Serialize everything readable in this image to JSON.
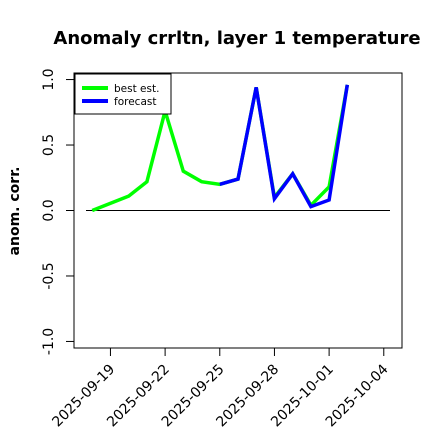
{
  "chart_data": {
    "type": "line",
    "title": "Anomaly crrltn, layer 1 temperature",
    "xlabel": "",
    "ylabel": "anom. corr.",
    "ylim": [
      -1.05,
      1.05
    ],
    "yticks": [
      -1.0,
      -0.5,
      0.0,
      0.5,
      1.0
    ],
    "ytick_labels": [
      "-1.0",
      "-0.5",
      "0.0",
      "0.5",
      "1.0"
    ],
    "xlim": [
      "2025-09-17",
      "2025-10-05"
    ],
    "xticks": [
      "2025-09-19",
      "2025-09-22",
      "2025-09-25",
      "2025-09-28",
      "2025-10-01",
      "2025-10-04"
    ],
    "xtick_labels": [
      "2025-09-19",
      "2025-09-22",
      "2025-09-25",
      "2025-09-28",
      "2025-10-01",
      "2025-10-04"
    ],
    "highlighted_tick": "2025-09-25",
    "highlight_color": "#228b22",
    "reference_line_y": 0.0,
    "grid": false,
    "legend_position": "top-left",
    "series": [
      {
        "name": "best est.",
        "color": "#00ff00",
        "points": [
          [
            "2025-09-18",
            0.0
          ],
          [
            "2025-09-20",
            0.11
          ],
          [
            "2025-09-21",
            0.22
          ],
          [
            "2025-09-22",
            0.76
          ],
          [
            "2025-09-23",
            0.3
          ],
          [
            "2025-09-24",
            0.22
          ],
          [
            "2025-09-25",
            0.2
          ],
          [
            "2025-09-26",
            0.24
          ],
          [
            "2025-09-27",
            0.94
          ],
          [
            "2025-09-28",
            0.1
          ],
          [
            "2025-09-29",
            0.28
          ],
          [
            "2025-09-30",
            0.04
          ],
          [
            "2025-10-01",
            0.18
          ],
          [
            "2025-10-02",
            0.96
          ]
        ]
      },
      {
        "name": "forecast",
        "color": "#0000ff",
        "points": [
          [
            "2025-09-25",
            0.2
          ],
          [
            "2025-09-26",
            0.24
          ],
          [
            "2025-09-27",
            0.94
          ],
          [
            "2025-09-28",
            0.09
          ],
          [
            "2025-09-29",
            0.28
          ],
          [
            "2025-09-30",
            0.03
          ],
          [
            "2025-10-01",
            0.08
          ],
          [
            "2025-10-02",
            0.96
          ]
        ]
      }
    ]
  }
}
